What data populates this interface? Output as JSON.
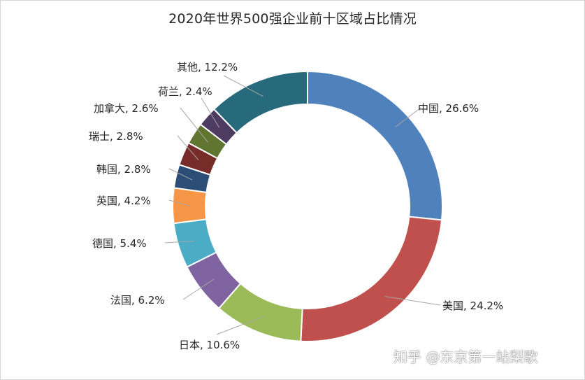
{
  "chart_data": {
    "type": "pie",
    "title": "2020年世界500强企业前十区域占比情况",
    "style": "donut",
    "unit": "%",
    "slices": [
      {
        "label": "中国",
        "value": 26.6,
        "color": "#4f81bd"
      },
      {
        "label": "美国",
        "value": 24.2,
        "color": "#c0504d"
      },
      {
        "label": "日本",
        "value": 10.6,
        "color": "#9bbb59"
      },
      {
        "label": "法国",
        "value": 6.2,
        "color": "#8064a2"
      },
      {
        "label": "德国",
        "value": 5.4,
        "color": "#4bacc6"
      },
      {
        "label": "英国",
        "value": 4.2,
        "color": "#f79646"
      },
      {
        "label": "韩国",
        "value": 2.8,
        "color": "#2c4d75"
      },
      {
        "label": "瑞士",
        "value": 2.8,
        "color": "#772c2a"
      },
      {
        "label": "加拿大",
        "value": 2.6,
        "color": "#5f7530"
      },
      {
        "label": "荷兰",
        "value": 2.4,
        "color": "#4d3b62"
      },
      {
        "label": "其他",
        "value": 12.2,
        "color": "#276a7c"
      }
    ],
    "legend": "none",
    "data_labels": "outside-with-leader-lines"
  },
  "watermark": "知乎 @东京第一站梨歌"
}
